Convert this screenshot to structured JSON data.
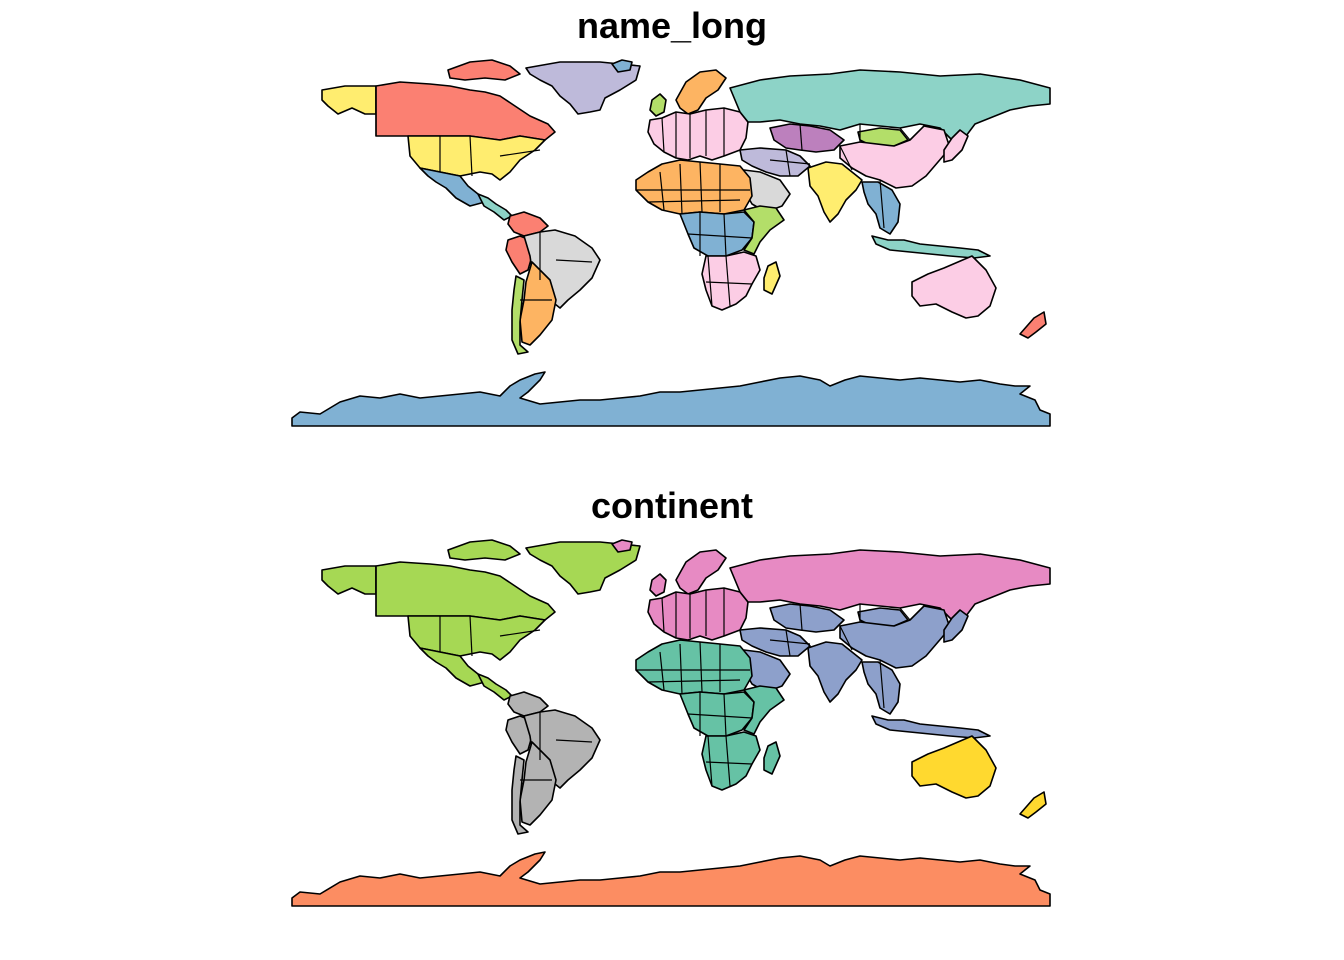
{
  "panels": [
    {
      "title": "name_long",
      "colors": {
        "greenland": "#bebada",
        "canada": "#fb8072",
        "canada_islands": "#fb8072",
        "alaska": "#ffed6f",
        "usa": "#ffed6f",
        "mexico": "#80b1d3",
        "central_america": "#8dd3c7",
        "south_america": "#d9d9d9",
        "peru": "#fb8072",
        "colombia": "#fb8072",
        "argentina": "#fdb462",
        "chile": "#b3de69",
        "europe": "#fccde5",
        "scandinavia": "#fdb462",
        "russia": "#8dd3c7",
        "kazakhstan": "#bc80bd",
        "mongolia": "#b3de69",
        "china": "#fccde5",
        "india": "#ffed6f",
        "middle_east": "#bebada",
        "arabia": "#d9d9d9",
        "africa_north": "#fdb462",
        "africa_central": "#80b1d3",
        "africa_east": "#b3de69",
        "africa_south": "#fccde5",
        "southeast_asia": "#80b1d3",
        "indonesia": "#8dd3c7",
        "japan": "#fccde5",
        "australia": "#fccde5",
        "new_zealand": "#fb8072",
        "antarctica": "#80b1d3",
        "madagascar": "#ffed6f",
        "uk": "#b3de69",
        "iceland": "#80b1d3"
      }
    },
    {
      "title": "continent",
      "colors": {
        "greenland": "#a6d854",
        "canada": "#a6d854",
        "canada_islands": "#a6d854",
        "alaska": "#a6d854",
        "usa": "#a6d854",
        "mexico": "#a6d854",
        "central_america": "#a6d854",
        "south_america": "#b3b3b3",
        "peru": "#b3b3b3",
        "colombia": "#b3b3b3",
        "argentina": "#b3b3b3",
        "chile": "#b3b3b3",
        "europe": "#e78ac3",
        "scandinavia": "#e78ac3",
        "russia": "#e78ac3",
        "kazakhstan": "#8da0cb",
        "mongolia": "#8da0cb",
        "china": "#8da0cb",
        "india": "#8da0cb",
        "middle_east": "#8da0cb",
        "arabia": "#8da0cb",
        "africa_north": "#66c2a5",
        "africa_central": "#66c2a5",
        "africa_east": "#66c2a5",
        "africa_south": "#66c2a5",
        "southeast_asia": "#8da0cb",
        "indonesia": "#8da0cb",
        "japan": "#8da0cb",
        "australia": "#ffd92f",
        "new_zealand": "#ffd92f",
        "antarctica": "#fc8d62",
        "madagascar": "#66c2a5",
        "uk": "#e78ac3",
        "iceland": "#e78ac3"
      }
    }
  ]
}
